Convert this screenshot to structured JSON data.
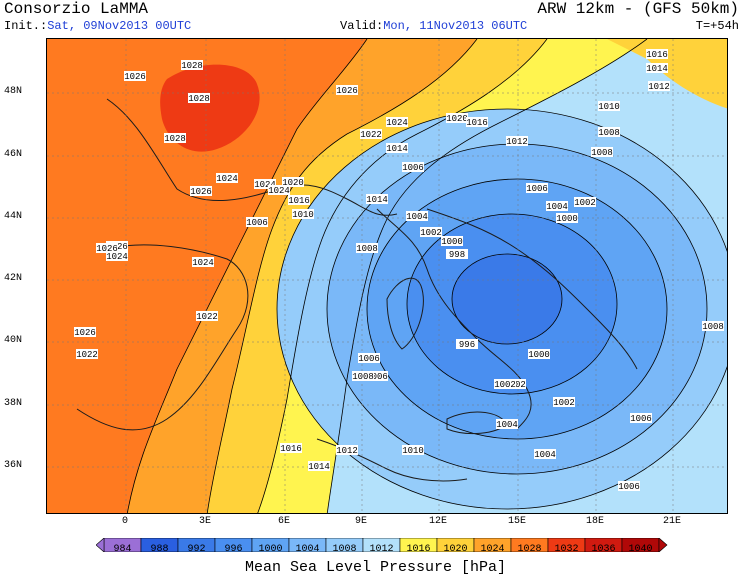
{
  "header": {
    "title": "Consorzio LaMMA",
    "model": "ARW 12km - (GFS 50km)",
    "init_label": "Init.:",
    "init_value": "Sat, 09Nov2013 00UTC",
    "valid_label": "Valid:",
    "valid_value": "Mon, 11Nov2013 06UTC",
    "lead_time": "T=+54h"
  },
  "axes": {
    "lat_ticks": [
      "48N",
      "46N",
      "44N",
      "42N",
      "40N",
      "38N",
      "36N"
    ],
    "lon_ticks": [
      "0",
      "3E",
      "6E",
      "9E",
      "12E",
      "15E",
      "18E",
      "21E"
    ]
  },
  "legend": {
    "levels": [
      "984",
      "988",
      "992",
      "996",
      "1000",
      "1004",
      "1008",
      "1012",
      "1016",
      "1020",
      "1024",
      "1028",
      "1032",
      "1036",
      "1040"
    ],
    "colors": [
      "#9b6fd6",
      "#2a5fe0",
      "#3a7ae8",
      "#4a8ff0",
      "#5fa4f4",
      "#7ab8f8",
      "#95ccfa",
      "#b3e1fb",
      "#fff44f",
      "#ffd23a",
      "#ffa32a",
      "#ff7a20",
      "#ee3a14",
      "#d01a10",
      "#b00808"
    ],
    "title": "Mean Sea Level Pressure [hPa]"
  },
  "isobar_labels": [
    {
      "text": "1016"
    },
    {
      "text": "1014"
    },
    {
      "text": "1012"
    },
    {
      "text": "1010"
    },
    {
      "text": "1008"
    },
    {
      "text": "1026"
    },
    {
      "text": "1028"
    },
    {
      "text": "1028"
    },
    {
      "text": "1028"
    },
    {
      "text": "1026"
    },
    {
      "text": "1026"
    },
    {
      "text": "1024"
    },
    {
      "text": "1020"
    },
    {
      "text": "1016"
    },
    {
      "text": "1022"
    },
    {
      "text": "1014"
    },
    {
      "text": "1012"
    },
    {
      "text": "1006"
    },
    {
      "text": "1008"
    },
    {
      "text": "1006"
    },
    {
      "text": "1026"
    },
    {
      "text": "1024"
    },
    {
      "text": "1024"
    },
    {
      "text": "1020"
    },
    {
      "text": "1016"
    },
    {
      "text": "1014"
    },
    {
      "text": "1010"
    },
    {
      "text": "1006"
    },
    {
      "text": "1004"
    },
    {
      "text": "1002"
    },
    {
      "text": "1000"
    },
    {
      "text": "1004"
    },
    {
      "text": "1002"
    },
    {
      "text": "1000"
    },
    {
      "text": "998"
    },
    {
      "text": "1008"
    },
    {
      "text": "1006"
    },
    {
      "text": "1026"
    },
    {
      "text": "1024"
    },
    {
      "text": "1022"
    },
    {
      "text": "1026"
    },
    {
      "text": "1022"
    },
    {
      "text": "1024"
    },
    {
      "text": "1024"
    },
    {
      "text": "1016"
    },
    {
      "text": "1014"
    },
    {
      "text": "1012"
    },
    {
      "text": "1010"
    },
    {
      "text": "1006"
    },
    {
      "text": "1008"
    },
    {
      "text": "996"
    },
    {
      "text": "1000"
    },
    {
      "text": "1002"
    },
    {
      "text": "1002"
    },
    {
      "text": "1004"
    },
    {
      "text": "1004"
    },
    {
      "text": "1006"
    },
    {
      "text": "1006"
    },
    {
      "text": "1008"
    },
    {
      "text": "1002"
    }
  ]
}
